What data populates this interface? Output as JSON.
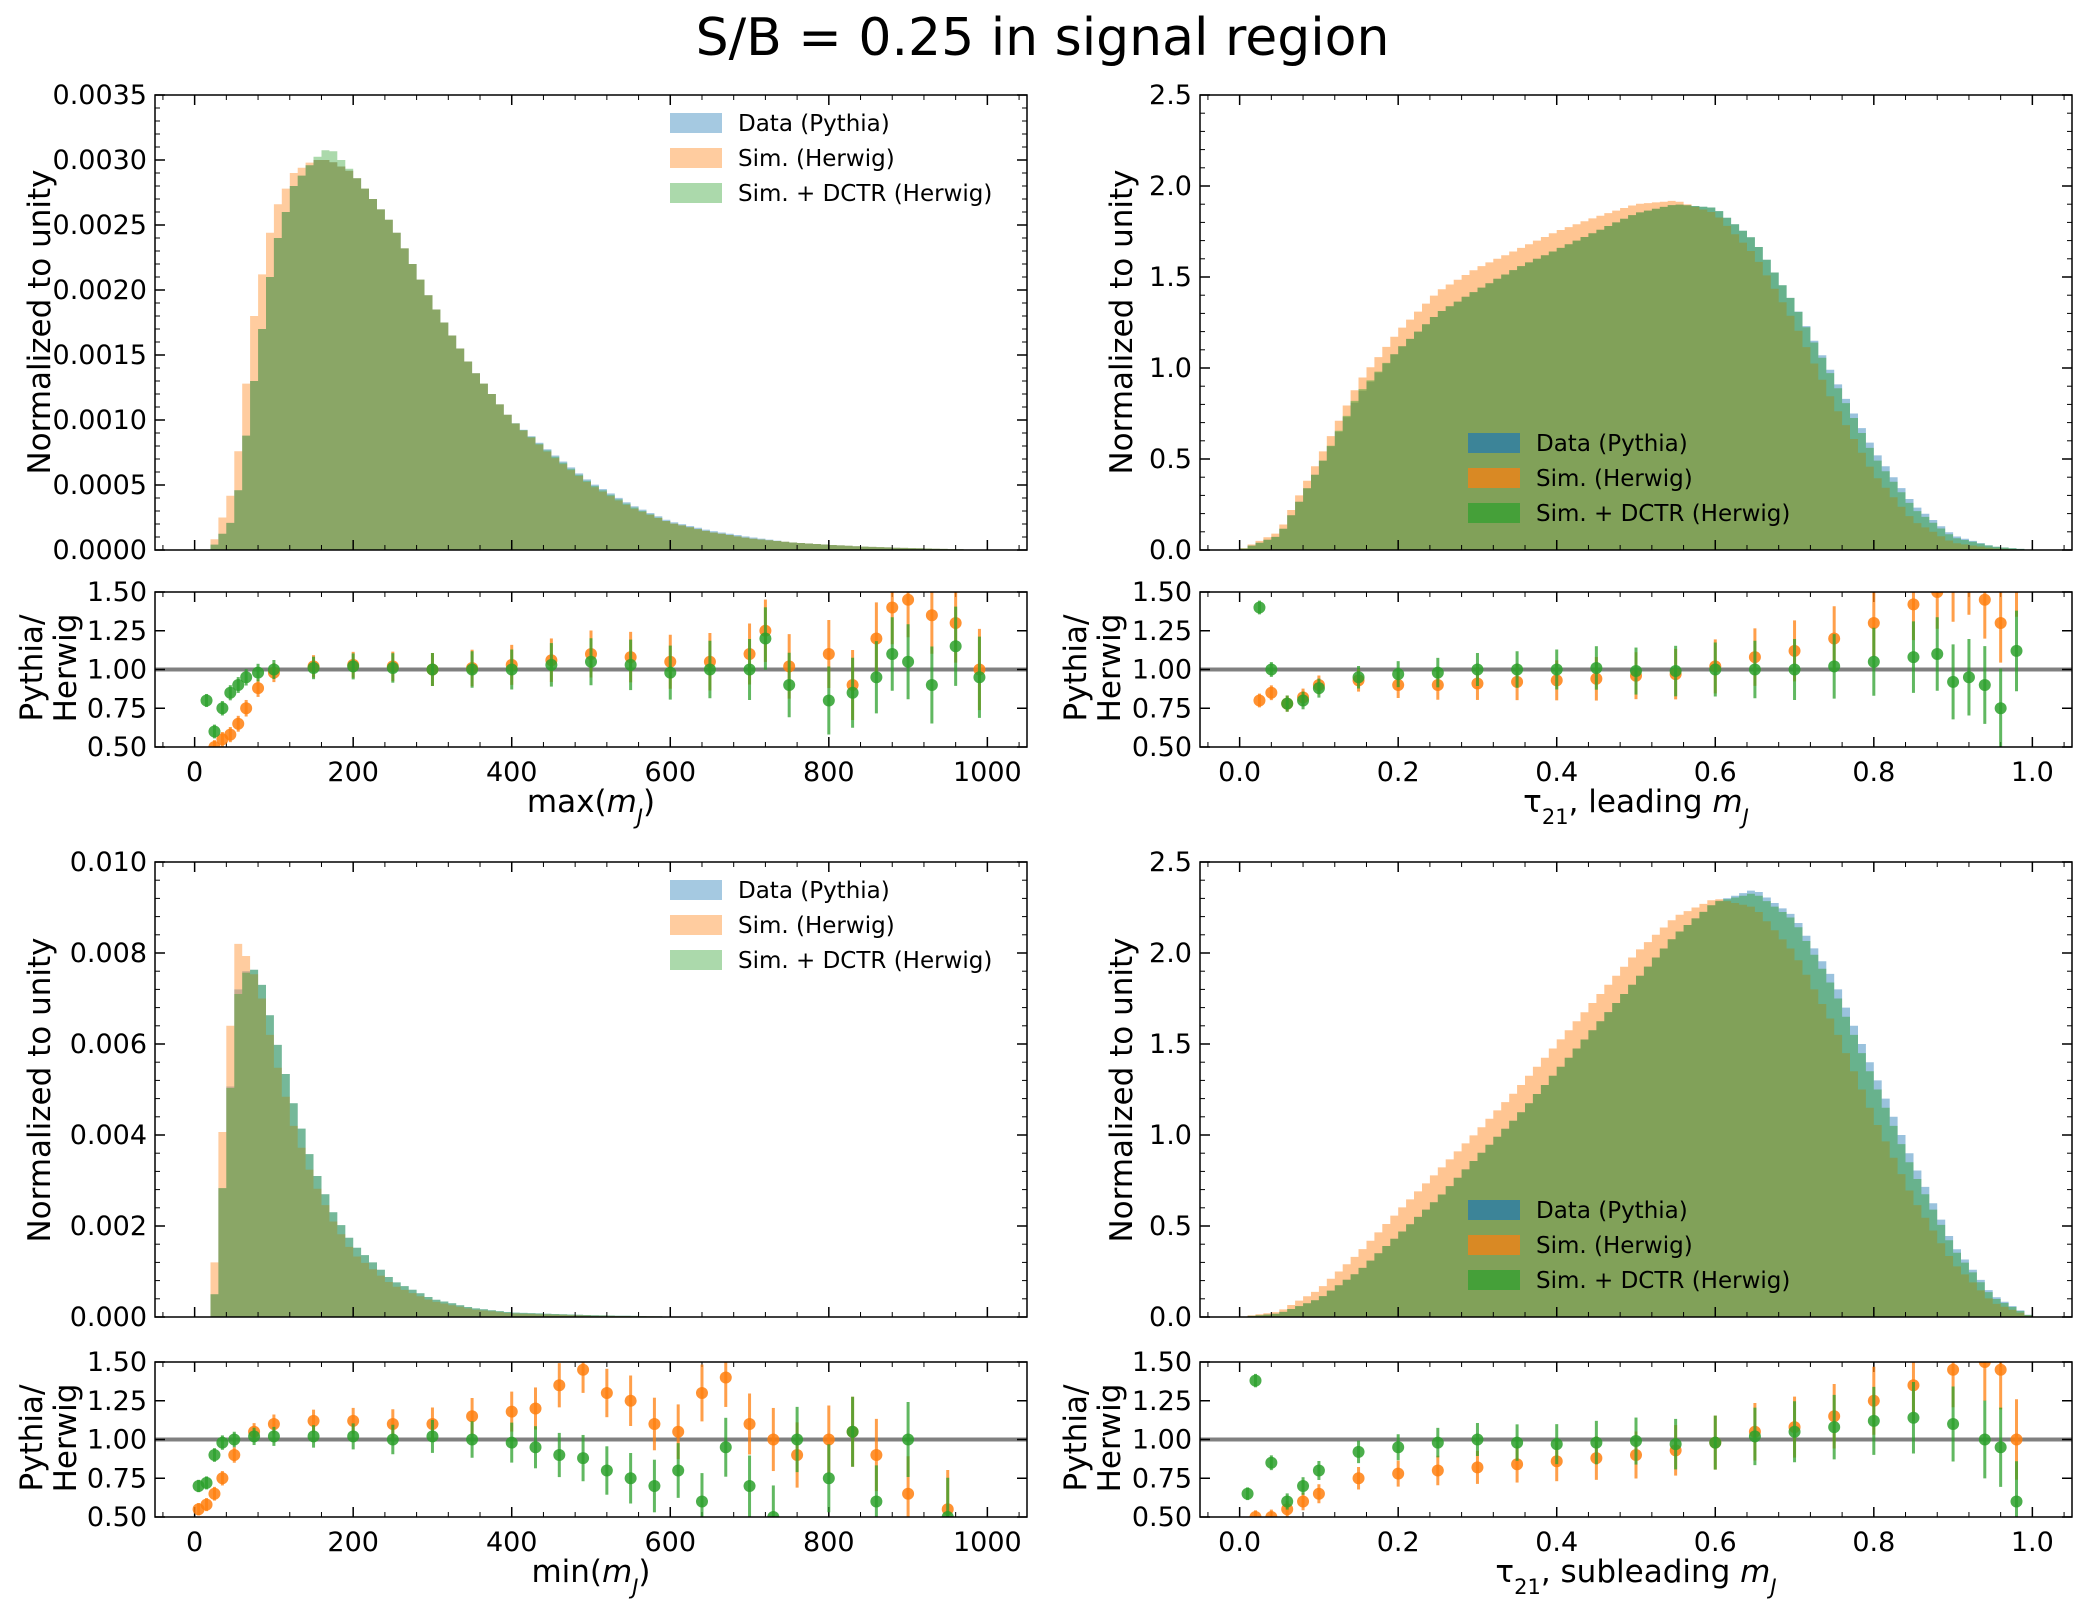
{
  "suptitle": "S/B = 0.25 in signal region",
  "colors": {
    "data": "#1f77b4",
    "sim": "#ff7f0e",
    "dctr": "#2ca02c",
    "ratio_ref": "#808080"
  },
  "chart_data": [
    {
      "type": "histogram",
      "panel": "top-left",
      "xlabel": "max(m_J)",
      "ylabel": "Normalized to unity",
      "xlim": [
        -50,
        1050
      ],
      "ylim": [
        0,
        0.0035
      ],
      "xticks": [
        "0",
        "200",
        "400",
        "600",
        "800",
        "1000"
      ],
      "yticks": [
        "0.0000",
        "0.0005",
        "0.0010",
        "0.0015",
        "0.0020",
        "0.0025",
        "0.0030",
        "0.0035"
      ],
      "legend": [
        "Data (Pythia)",
        "Sim. (Herwig)",
        "Sim. + DCTR (Herwig)"
      ],
      "legend_loc": "upper-right",
      "legend_style": "light",
      "x": [
        0,
        20,
        50,
        75,
        100,
        125,
        150,
        170,
        200,
        250,
        300,
        350,
        400,
        450,
        500,
        550,
        600,
        650,
        700,
        750,
        800,
        850,
        900,
        950,
        1000
      ],
      "series": [
        {
          "name": "Data (Pythia)",
          "values": [
            0,
            0,
            0.00025,
            0.0013,
            0.0023,
            0.0028,
            0.003,
            0.003,
            0.0029,
            0.0025,
            0.0019,
            0.0014,
            0.001,
            0.00075,
            0.00052,
            0.00035,
            0.00022,
            0.00015,
            0.0001,
            6e-05,
            4e-05,
            2.5e-05,
            1.5e-05,
            8e-06,
            0
          ]
        },
        {
          "name": "Sim. (Herwig)",
          "values": [
            0,
            0,
            0.0005,
            0.0018,
            0.0026,
            0.0029,
            0.003,
            0.003,
            0.0029,
            0.0025,
            0.0019,
            0.0014,
            0.001,
            0.00073,
            0.0005,
            0.00033,
            0.00021,
            0.00014,
            9e-05,
            6e-05,
            4e-05,
            2.5e-05,
            1.5e-05,
            8e-06,
            0
          ]
        },
        {
          "name": "Sim. + DCTR (Herwig)",
          "values": [
            0,
            0,
            0.00025,
            0.0013,
            0.0023,
            0.0028,
            0.003,
            0.0031,
            0.0029,
            0.0025,
            0.0019,
            0.0014,
            0.001,
            0.00074,
            0.00051,
            0.00034,
            0.00021,
            0.00014,
            9e-05,
            6e-05,
            4e-05,
            2.5e-05,
            1.5e-05,
            8e-06,
            0
          ]
        }
      ],
      "ratio": {
        "ylabel": "Pythia/ Herwig",
        "ylim": [
          0.5,
          1.5
        ],
        "yticks": [
          "0.50",
          "0.75",
          "1.00",
          "1.25",
          "1.50"
        ],
        "reference": 1.0,
        "x": [
          15,
          25,
          35,
          45,
          55,
          65,
          80,
          100,
          150,
          200,
          250,
          300,
          350,
          400,
          450,
          500,
          550,
          600,
          650,
          700,
          720,
          750,
          800,
          830,
          860,
          880,
          900,
          930,
          960,
          990
        ],
        "series": [
          {
            "name": "Sim. (Herwig)",
            "values": [
              0.45,
              0.5,
              0.55,
              0.58,
              0.65,
              0.75,
              0.88,
              0.98,
              1.02,
              1.03,
              1.02,
              1.0,
              1.01,
              1.03,
              1.06,
              1.1,
              1.08,
              1.05,
              1.05,
              1.1,
              1.25,
              1.02,
              1.1,
              0.9,
              1.2,
              1.4,
              1.45,
              1.35,
              1.3,
              1.0
            ]
          },
          {
            "name": "Sim. + DCTR (Herwig)",
            "values": [
              0.8,
              0.6,
              0.75,
              0.85,
              0.9,
              0.95,
              0.98,
              1.0,
              1.01,
              1.02,
              1.01,
              1.0,
              1.0,
              1.0,
              1.03,
              1.05,
              1.03,
              0.98,
              1.0,
              1.0,
              1.2,
              0.9,
              0.8,
              0.85,
              0.95,
              1.1,
              1.05,
              0.9,
              1.15,
              0.95
            ]
          }
        ]
      }
    },
    {
      "type": "histogram",
      "panel": "top-right",
      "xlabel": "τ21, leading m_J",
      "ylabel": "Normalized to unity",
      "xlim": [
        -0.05,
        1.05
      ],
      "ylim": [
        0,
        2.5
      ],
      "xticks": [
        "0.0",
        "0.2",
        "0.4",
        "0.6",
        "0.8",
        "1.0"
      ],
      "yticks": [
        "0.0",
        "0.5",
        "1.0",
        "1.5",
        "2.0",
        "2.5"
      ],
      "legend": [
        "Data (Pythia)",
        "Sim. (Herwig)",
        "Sim. + DCTR (Herwig)"
      ],
      "legend_loc": "lower-center",
      "legend_style": "dark",
      "x": [
        0,
        0.05,
        0.1,
        0.15,
        0.2,
        0.25,
        0.3,
        0.35,
        0.4,
        0.45,
        0.5,
        0.55,
        0.6,
        0.65,
        0.7,
        0.75,
        0.8,
        0.85,
        0.9,
        0.95,
        1.0
      ],
      "series": [
        {
          "name": "Data (Pythia)",
          "values": [
            0,
            0.08,
            0.45,
            0.85,
            1.1,
            1.3,
            1.43,
            1.55,
            1.65,
            1.75,
            1.85,
            1.9,
            1.88,
            1.7,
            1.35,
            0.95,
            0.55,
            0.25,
            0.08,
            0.02,
            0
          ]
        },
        {
          "name": "Sim. (Herwig)",
          "values": [
            0,
            0.1,
            0.5,
            0.92,
            1.2,
            1.42,
            1.55,
            1.65,
            1.75,
            1.83,
            1.9,
            1.92,
            1.85,
            1.62,
            1.25,
            0.8,
            0.42,
            0.16,
            0.04,
            0.01,
            0
          ]
        },
        {
          "name": "Sim. + DCTR (Herwig)",
          "values": [
            0,
            0.08,
            0.45,
            0.86,
            1.1,
            1.3,
            1.43,
            1.55,
            1.65,
            1.75,
            1.85,
            1.9,
            1.88,
            1.7,
            1.35,
            0.93,
            0.52,
            0.23,
            0.07,
            0.02,
            0
          ]
        }
      ],
      "ratio": {
        "ylabel": "Pythia/ Herwig",
        "ylim": [
          0.5,
          1.5
        ],
        "yticks": [
          "0.50",
          "0.75",
          "1.00",
          "1.25",
          "1.50"
        ],
        "reference": 1.0,
        "x": [
          0.025,
          0.04,
          0.06,
          0.08,
          0.1,
          0.15,
          0.2,
          0.25,
          0.3,
          0.35,
          0.4,
          0.45,
          0.5,
          0.55,
          0.6,
          0.65,
          0.7,
          0.75,
          0.8,
          0.85,
          0.88,
          0.9,
          0.92,
          0.94,
          0.96,
          0.98
        ],
        "series": [
          {
            "name": "Sim. (Herwig)",
            "values": [
              0.8,
              0.85,
              0.78,
              0.82,
              0.9,
              0.93,
              0.9,
              0.9,
              0.91,
              0.92,
              0.93,
              0.94,
              0.96,
              0.97,
              1.02,
              1.08,
              1.12,
              1.2,
              1.3,
              1.42,
              1.5,
              1.55,
              1.6,
              1.45,
              1.3,
              1.6
            ]
          },
          {
            "name": "Sim. + DCTR (Herwig)",
            "values": [
              1.4,
              1.0,
              0.78,
              0.8,
              0.88,
              0.95,
              0.97,
              0.98,
              1.0,
              1.0,
              1.0,
              1.01,
              0.99,
              0.99,
              1.0,
              1.0,
              1.0,
              1.02,
              1.05,
              1.08,
              1.1,
              0.92,
              0.95,
              0.9,
              0.75,
              1.12
            ]
          }
        ]
      }
    },
    {
      "type": "histogram",
      "panel": "bottom-left",
      "xlabel": "min(m_J)",
      "ylabel": "Normalized to unity",
      "xlim": [
        -50,
        1050
      ],
      "ylim": [
        0,
        0.01
      ],
      "xticks": [
        "0",
        "200",
        "400",
        "600",
        "800",
        "1000"
      ],
      "yticks": [
        "0.000",
        "0.002",
        "0.004",
        "0.006",
        "0.008",
        "0.010"
      ],
      "legend": [
        "Data (Pythia)",
        "Sim. (Herwig)",
        "Sim. + DCTR (Herwig)"
      ],
      "legend_loc": "upper-right",
      "legend_style": "light",
      "x": [
        0,
        15,
        25,
        40,
        55,
        70,
        85,
        100,
        125,
        150,
        175,
        200,
        250,
        300,
        350,
        400,
        500,
        600,
        700,
        800,
        900,
        1000
      ],
      "series": [
        {
          "name": "Data (Pythia)",
          "values": [
            0,
            0,
            0.0005,
            0.004,
            0.0072,
            0.0078,
            0.0073,
            0.0063,
            0.0047,
            0.0033,
            0.0023,
            0.0016,
            0.0008,
            0.0004,
            0.0002,
            0.0001,
            4e-05,
            1e-05,
            0,
            0,
            0,
            0
          ]
        },
        {
          "name": "Sim. (Herwig)",
          "values": [
            0,
            0,
            0.0012,
            0.0055,
            0.0082,
            0.0078,
            0.007,
            0.0058,
            0.0042,
            0.003,
            0.0021,
            0.0014,
            0.0007,
            0.00035,
            0.00017,
            8e-05,
            3e-05,
            1e-05,
            0,
            0,
            0,
            0
          ]
        },
        {
          "name": "Sim. + DCTR (Herwig)",
          "values": [
            0,
            0,
            0.0005,
            0.004,
            0.0071,
            0.0078,
            0.0073,
            0.0063,
            0.0047,
            0.0033,
            0.0023,
            0.0016,
            0.0008,
            0.0004,
            0.0002,
            0.0001,
            4e-05,
            1e-05,
            0,
            0,
            0,
            0
          ]
        }
      ],
      "ratio": {
        "ylabel": "Pythia/ Herwig",
        "ylim": [
          0.5,
          1.5
        ],
        "yticks": [
          "0.50",
          "0.75",
          "1.00",
          "1.25",
          "1.50"
        ],
        "reference": 1.0,
        "x": [
          5,
          15,
          25,
          35,
          50,
          75,
          100,
          150,
          200,
          250,
          300,
          350,
          400,
          430,
          460,
          490,
          520,
          550,
          580,
          610,
          640,
          670,
          700,
          730,
          760,
          800,
          830,
          860,
          900,
          950
        ],
        "series": [
          {
            "name": "Sim. (Herwig)",
            "values": [
              0.55,
              0.58,
              0.65,
              0.75,
              0.9,
              1.05,
              1.1,
              1.12,
              1.12,
              1.1,
              1.1,
              1.15,
              1.18,
              1.2,
              1.35,
              1.45,
              1.3,
              1.25,
              1.1,
              1.05,
              1.3,
              1.4,
              1.1,
              1.0,
              0.9,
              1.0,
              1.05,
              0.9,
              0.65,
              0.55
            ]
          },
          {
            "name": "Sim. + DCTR (Herwig)",
            "values": [
              0.7,
              0.72,
              0.9,
              0.98,
              1.0,
              1.02,
              1.02,
              1.02,
              1.02,
              1.0,
              1.02,
              1.0,
              0.98,
              0.95,
              0.9,
              0.88,
              0.8,
              0.75,
              0.7,
              0.8,
              0.6,
              0.95,
              0.7,
              0.5,
              1.0,
              0.75,
              1.05,
              0.6,
              1.0,
              0.5
            ]
          }
        ]
      }
    },
    {
      "type": "histogram",
      "panel": "bottom-right",
      "xlabel": "τ21, subleading m_J",
      "ylabel": "Normalized to unity",
      "xlim": [
        -0.05,
        1.05
      ],
      "ylim": [
        0,
        2.5
      ],
      "xticks": [
        "0.0",
        "0.2",
        "0.4",
        "0.6",
        "0.8",
        "1.0"
      ],
      "yticks": [
        "0.0",
        "0.5",
        "1.0",
        "1.5",
        "2.0",
        "2.5"
      ],
      "legend": [
        "Data (Pythia)",
        "Sim. (Herwig)",
        "Sim. + DCTR (Herwig)"
      ],
      "legend_loc": "lower-center",
      "legend_style": "dark",
      "x": [
        0,
        0.05,
        0.1,
        0.15,
        0.2,
        0.25,
        0.3,
        0.35,
        0.4,
        0.45,
        0.5,
        0.55,
        0.6,
        0.65,
        0.7,
        0.75,
        0.8,
        0.85,
        0.9,
        0.95,
        1.0
      ],
      "series": [
        {
          "name": "Data (Pythia)",
          "values": [
            0,
            0.02,
            0.1,
            0.25,
            0.45,
            0.65,
            0.88,
            1.1,
            1.35,
            1.6,
            1.85,
            2.1,
            2.28,
            2.35,
            2.2,
            1.85,
            1.35,
            0.85,
            0.4,
            0.12,
            0
          ]
        },
        {
          "name": "Sim. (Herwig)",
          "values": [
            0,
            0.03,
            0.15,
            0.35,
            0.58,
            0.8,
            1.02,
            1.25,
            1.5,
            1.75,
            2.0,
            2.2,
            2.3,
            2.25,
            2.0,
            1.6,
            1.1,
            0.65,
            0.3,
            0.08,
            0
          ]
        },
        {
          "name": "Sim. + DCTR (Herwig)",
          "values": [
            0,
            0.02,
            0.1,
            0.25,
            0.45,
            0.65,
            0.88,
            1.1,
            1.35,
            1.6,
            1.85,
            2.1,
            2.28,
            2.33,
            2.18,
            1.8,
            1.3,
            0.8,
            0.38,
            0.11,
            0
          ]
        }
      ],
      "ratio": {
        "ylabel": "Pythia/ Herwig",
        "ylim": [
          0.5,
          1.5
        ],
        "yticks": [
          "0.50",
          "0.75",
          "1.00",
          "1.25",
          "1.50"
        ],
        "reference": 1.0,
        "x": [
          0.01,
          0.02,
          0.04,
          0.06,
          0.08,
          0.1,
          0.15,
          0.2,
          0.25,
          0.3,
          0.35,
          0.4,
          0.45,
          0.5,
          0.55,
          0.6,
          0.65,
          0.7,
          0.75,
          0.8,
          0.85,
          0.9,
          0.94,
          0.96,
          0.98
        ],
        "series": [
          {
            "name": "Sim. (Herwig)",
            "values": [
              0.45,
              0.5,
              0.5,
              0.55,
              0.6,
              0.65,
              0.75,
              0.78,
              0.8,
              0.82,
              0.84,
              0.86,
              0.88,
              0.9,
              0.93,
              0.98,
              1.05,
              1.08,
              1.15,
              1.25,
              1.35,
              1.45,
              1.5,
              1.45,
              1.0
            ]
          },
          {
            "name": "Sim. + DCTR (Herwig)",
            "values": [
              0.65,
              1.38,
              0.85,
              0.6,
              0.7,
              0.8,
              0.92,
              0.95,
              0.98,
              1.0,
              0.98,
              0.97,
              0.98,
              0.99,
              0.97,
              0.98,
              1.02,
              1.05,
              1.08,
              1.12,
              1.14,
              1.1,
              1.0,
              0.95,
              0.6
            ]
          }
        ]
      }
    }
  ]
}
